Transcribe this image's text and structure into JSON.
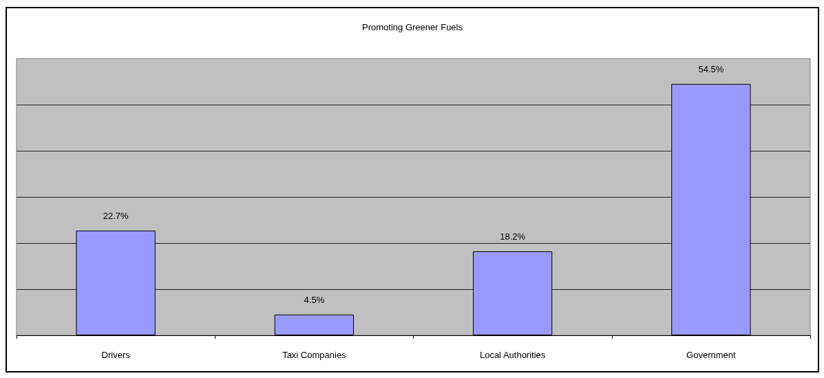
{
  "chart_data": {
    "type": "bar",
    "title": "Promoting Greener Fuels",
    "categories": [
      "Drivers",
      "Taxi Companies",
      "Local Authorities",
      "Government"
    ],
    "values": [
      22.7,
      4.5,
      18.2,
      54.5
    ],
    "value_labels": [
      "22.7%",
      "4.5%",
      "18.2%",
      "54.5%"
    ],
    "color": "#9999ff",
    "ylim": [
      0,
      60
    ],
    "yticks": [
      {
        "value": 0,
        "label": null
      },
      {
        "value": 10,
        "label": null
      },
      {
        "value": 20,
        "label": null
      },
      {
        "value": 30,
        "label": null
      },
      {
        "value": 40,
        "label": null
      },
      {
        "value": 50,
        "label": null
      }
    ],
    "grid": "y",
    "tick_labels": "x"
  }
}
